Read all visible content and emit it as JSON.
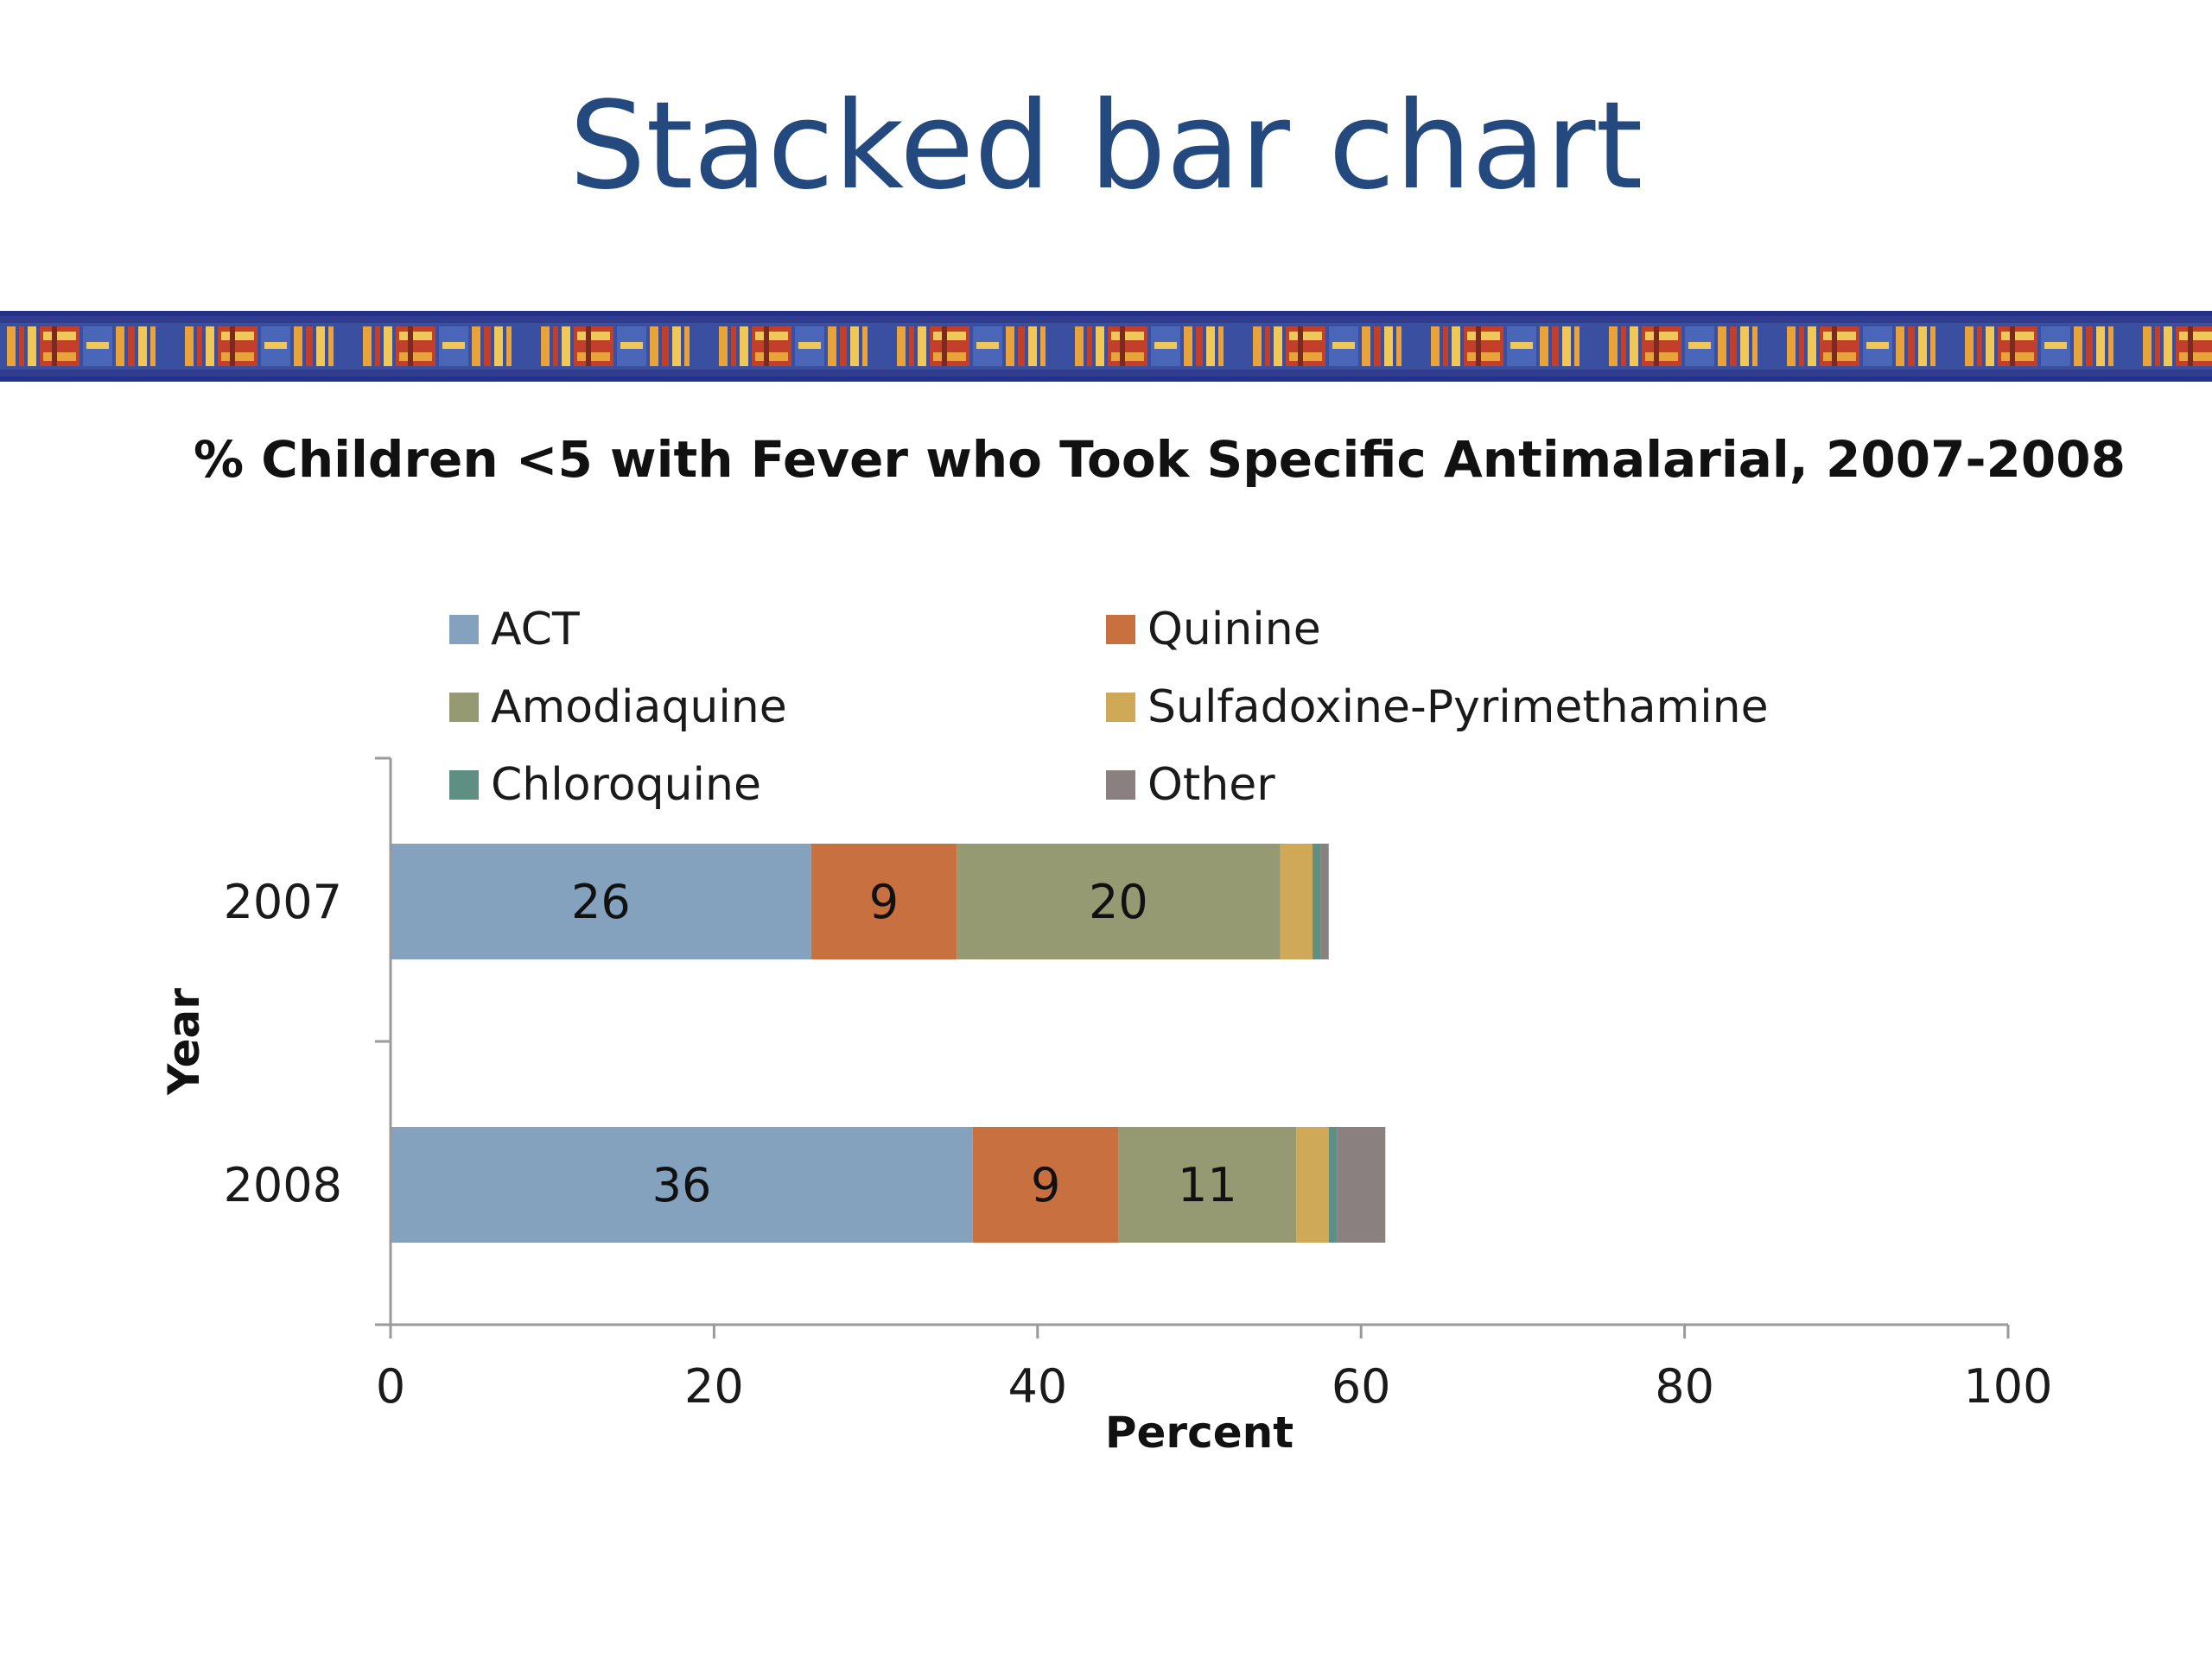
{
  "slide": {
    "title": "Stacked bar chart"
  },
  "colors": {
    "title": "#24497e",
    "banner_band": "#2f3d8c",
    "banner_pattern": [
      "#e8a33a",
      "#c2402a",
      "#f0c85a",
      "#7a2a1e"
    ]
  },
  "chart_data": {
    "type": "bar",
    "orientation": "horizontal",
    "stacked": true,
    "title": "% Children <5 with Fever who Took Specific Antimalarial, 2007-2008",
    "xlabel": "Percent",
    "ylabel": "Year",
    "xlim": [
      0,
      100
    ],
    "x_ticks": [
      0,
      20,
      40,
      60,
      80,
      100
    ],
    "categories": [
      "2007",
      "2008"
    ],
    "legend_placement": "top",
    "grid": false,
    "series": [
      {
        "name": "ACT",
        "color": "#84a1bd",
        "values": [
          26,
          36
        ],
        "labels": [
          "26",
          "36"
        ]
      },
      {
        "name": "Quinine",
        "color": "#c8703f",
        "values": [
          9,
          9
        ],
        "labels": [
          "9",
          "9"
        ]
      },
      {
        "name": "Amodiaquine",
        "color": "#959a72",
        "values": [
          20,
          11
        ],
        "labels": [
          "20",
          "11"
        ]
      },
      {
        "name": "Sulfadoxine-Pyrimethamine",
        "color": "#cfa957",
        "values": [
          2,
          2
        ],
        "labels": [
          "",
          ""
        ]
      },
      {
        "name": "Chloroquine",
        "color": "#5f8e82",
        "values": [
          0.5,
          0.5
        ],
        "labels": [
          "",
          ""
        ]
      },
      {
        "name": "Other",
        "color": "#8a8080",
        "values": [
          0.5,
          3
        ],
        "labels": [
          "",
          ""
        ]
      }
    ]
  }
}
